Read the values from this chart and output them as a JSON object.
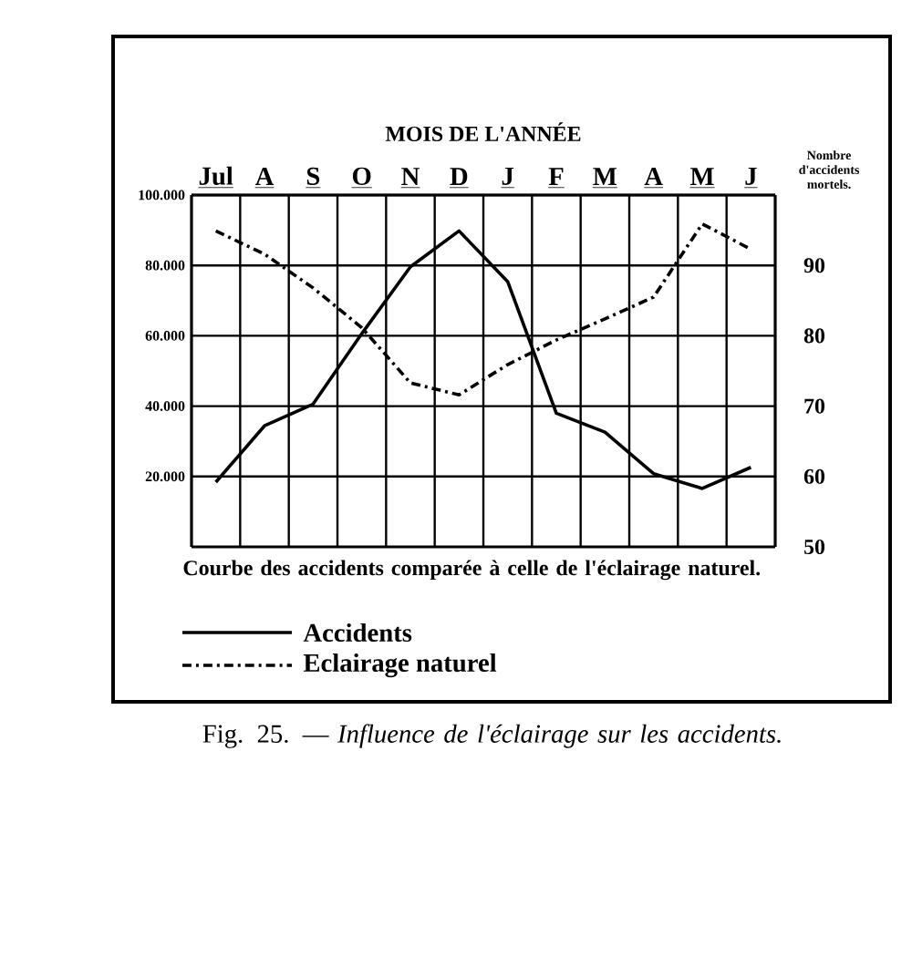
{
  "chart_data": {
    "type": "line",
    "title": "MOIS DE L'ANNÉE",
    "y2label": "Nombre d'accidents mortels.",
    "categories": [
      "Jul",
      "A",
      "S",
      "O",
      "N",
      "D",
      "J",
      "F",
      "M",
      "A",
      "M",
      "J"
    ],
    "series": [
      {
        "name": "Accidents",
        "color": "#000000",
        "axis": "y2",
        "line_style": "solid",
        "values": [
          59.2,
          67.2,
          70.3,
          80.3,
          89.8,
          94.9,
          87.7,
          69,
          66.3,
          60.4,
          58.3,
          61.3
        ]
      },
      {
        "name": "Eclairage naturel",
        "color": "#000000",
        "line_style": "dashed",
        "values": [
          89800,
          83200,
          73600,
          62300,
          46600,
          43200,
          51800,
          58800,
          64800,
          71000,
          91800,
          84600
        ]
      }
    ],
    "ylim": [
      0,
      100000
    ],
    "yticks": [
      {
        "value": 20000,
        "label": "20.000"
      },
      {
        "value": 40000,
        "label": "40.000"
      },
      {
        "value": 60000,
        "label": "60.000"
      },
      {
        "value": 80000,
        "label": "80.000"
      },
      {
        "value": 100000,
        "label": "100.000"
      }
    ],
    "y2lim": [
      50,
      100
    ],
    "y2ticks": [
      50,
      60,
      70,
      80,
      90
    ],
    "grid": true,
    "legend": "bottom",
    "marker": "none",
    "annotations": [
      "Courbe des accidents comparée à celle de l'éclairage naturel.",
      "Fig. 25. — *Influence de l'éclairage sur les accidents.*"
    ]
  }
}
